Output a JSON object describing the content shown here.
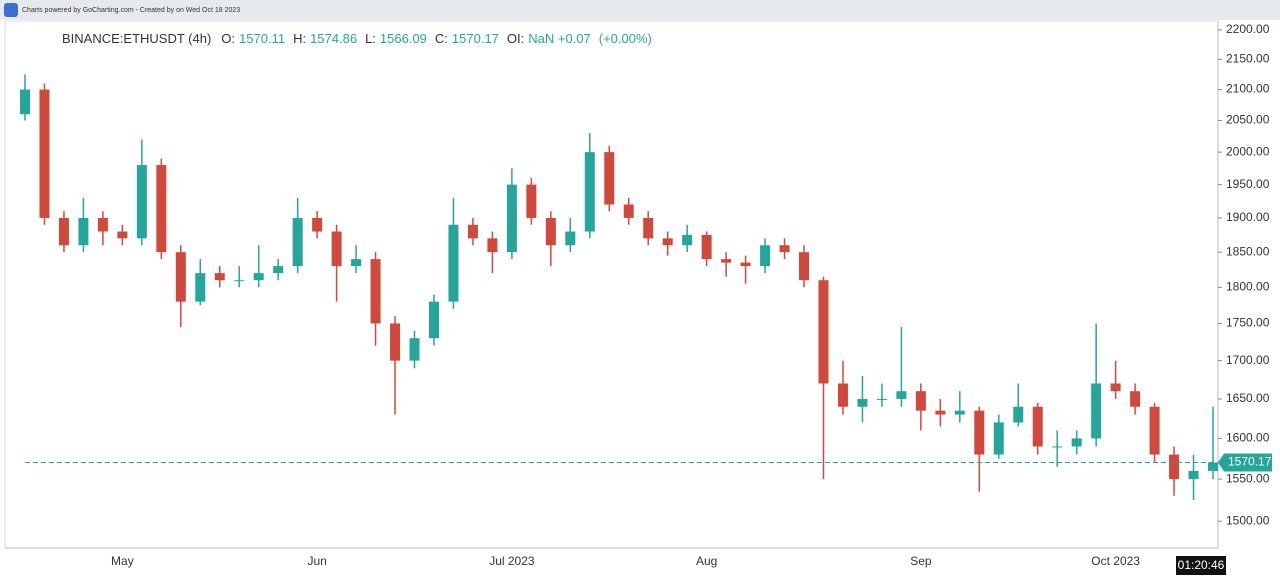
{
  "top_bar": {
    "text": "Charts powered by GoCharting.com - Created by  on Wed Oct 18 2023"
  },
  "chart_data": {
    "type": "candlestick",
    "header": {
      "symbol": "BINANCE:ETHUSDT (4h)",
      "fields": [
        {
          "label": "O:",
          "value": "1570.11"
        },
        {
          "label": "H:",
          "value": "1574.86"
        },
        {
          "label": "L:",
          "value": "1566.09"
        },
        {
          "label": "C:",
          "value": "1570.17"
        },
        {
          "label": "OI:",
          "value": "NaN +0.07"
        }
      ],
      "change": "(+0.00%)"
    },
    "categories": [
      null,
      null,
      null,
      null,
      null,
      "May",
      null,
      null,
      null,
      null,
      null,
      null,
      null,
      null,
      null,
      "Jun",
      null,
      null,
      null,
      null,
      null,
      null,
      null,
      null,
      null,
      "Jul 2023",
      null,
      null,
      null,
      null,
      null,
      null,
      null,
      null,
      null,
      "Aug",
      null,
      null,
      null,
      null,
      null,
      null,
      null,
      null,
      null,
      null,
      "Sep",
      null,
      null,
      null,
      null,
      null,
      null,
      null,
      null,
      null,
      "Oct 2023",
      null,
      null,
      null,
      null,
      null
    ],
    "open": [
      2060,
      2100,
      1900,
      1860,
      1900,
      1880,
      1870,
      1980,
      1850,
      1780,
      1820,
      1810,
      1810,
      1820,
      1830,
      1900,
      1880,
      1830,
      1840,
      1750,
      1700,
      1730,
      1780,
      1890,
      1870,
      1850,
      1950,
      1900,
      1860,
      1880,
      2000,
      1920,
      1900,
      1870,
      1860,
      1875,
      1840,
      1835,
      1830,
      1860,
      1850,
      1810,
      1670,
      1640,
      1650,
      1650,
      1660,
      1635,
      1630,
      1635,
      1580,
      1620,
      1640,
      1590,
      1590,
      1600,
      1670,
      1660,
      1640,
      1580,
      1550,
      1560
    ],
    "high": [
      2125,
      2110,
      1910,
      1930,
      1910,
      1890,
      2020,
      1990,
      1860,
      1840,
      1830,
      1830,
      1860,
      1840,
      1930,
      1910,
      1890,
      1860,
      1850,
      1760,
      1740,
      1790,
      1930,
      1900,
      1880,
      1975,
      1960,
      1910,
      1900,
      2030,
      2010,
      1930,
      1910,
      1880,
      1890,
      1880,
      1850,
      1845,
      1870,
      1870,
      1860,
      1815,
      1700,
      1680,
      1670,
      1745,
      1670,
      1650,
      1660,
      1640,
      1630,
      1670,
      1645,
      1610,
      1610,
      1750,
      1700,
      1670,
      1645,
      1590,
      1580,
      1640
    ],
    "low": [
      2050,
      1890,
      1850,
      1850,
      1860,
      1860,
      1860,
      1840,
      1745,
      1775,
      1800,
      1800,
      1800,
      1810,
      1820,
      1870,
      1780,
      1820,
      1720,
      1630,
      1690,
      1720,
      1770,
      1860,
      1820,
      1840,
      1890,
      1830,
      1850,
      1870,
      1910,
      1890,
      1860,
      1845,
      1850,
      1830,
      1815,
      1805,
      1820,
      1840,
      1800,
      1550,
      1630,
      1620,
      1640,
      1640,
      1610,
      1615,
      1620,
      1535,
      1575,
      1615,
      1580,
      1565,
      1580,
      1590,
      1650,
      1630,
      1570,
      1530,
      1525,
      1550
    ],
    "close": [
      2100,
      1900,
      1860,
      1900,
      1880,
      1870,
      1980,
      1850,
      1780,
      1820,
      1810,
      1810,
      1820,
      1830,
      1900,
      1880,
      1830,
      1840,
      1750,
      1700,
      1730,
      1780,
      1890,
      1870,
      1850,
      1950,
      1900,
      1860,
      1880,
      2000,
      1920,
      1900,
      1870,
      1860,
      1875,
      1840,
      1835,
      1830,
      1860,
      1850,
      1810,
      1670,
      1640,
      1650,
      1650,
      1660,
      1635,
      1630,
      1635,
      1580,
      1620,
      1640,
      1590,
      1590,
      1600,
      1670,
      1660,
      1640,
      1580,
      1550,
      1560,
      1570.17
    ],
    "up_color": "#26a69a",
    "down_color": "#d0493d",
    "log_scale": true,
    "ylim": [
      1469,
      2217
    ],
    "yticks": [
      {
        "value": 1500,
        "label": "1500.00"
      },
      {
        "value": 1550,
        "label": "1550.00"
      },
      {
        "value": 1600,
        "label": "1600.00"
      },
      {
        "value": 1650,
        "label": "1650.00"
      },
      {
        "value": 1700,
        "label": "1700.00"
      },
      {
        "value": 1750,
        "label": "1750.00"
      },
      {
        "value": 1800,
        "label": "1800.00"
      },
      {
        "value": 1850,
        "label": "1850.00"
      },
      {
        "value": 1900,
        "label": "1900.00"
      },
      {
        "value": 1950,
        "label": "1950.00"
      },
      {
        "value": 2000,
        "label": "2000.00"
      },
      {
        "value": 2050,
        "label": "2050.00"
      },
      {
        "value": 2100,
        "label": "2100.00"
      },
      {
        "value": 2150,
        "label": "2150.00"
      },
      {
        "value": 2200,
        "label": "2200.00"
      }
    ],
    "last_price": {
      "value": 1570.17,
      "label": "1570.17"
    },
    "time_label": "01:20:46"
  }
}
